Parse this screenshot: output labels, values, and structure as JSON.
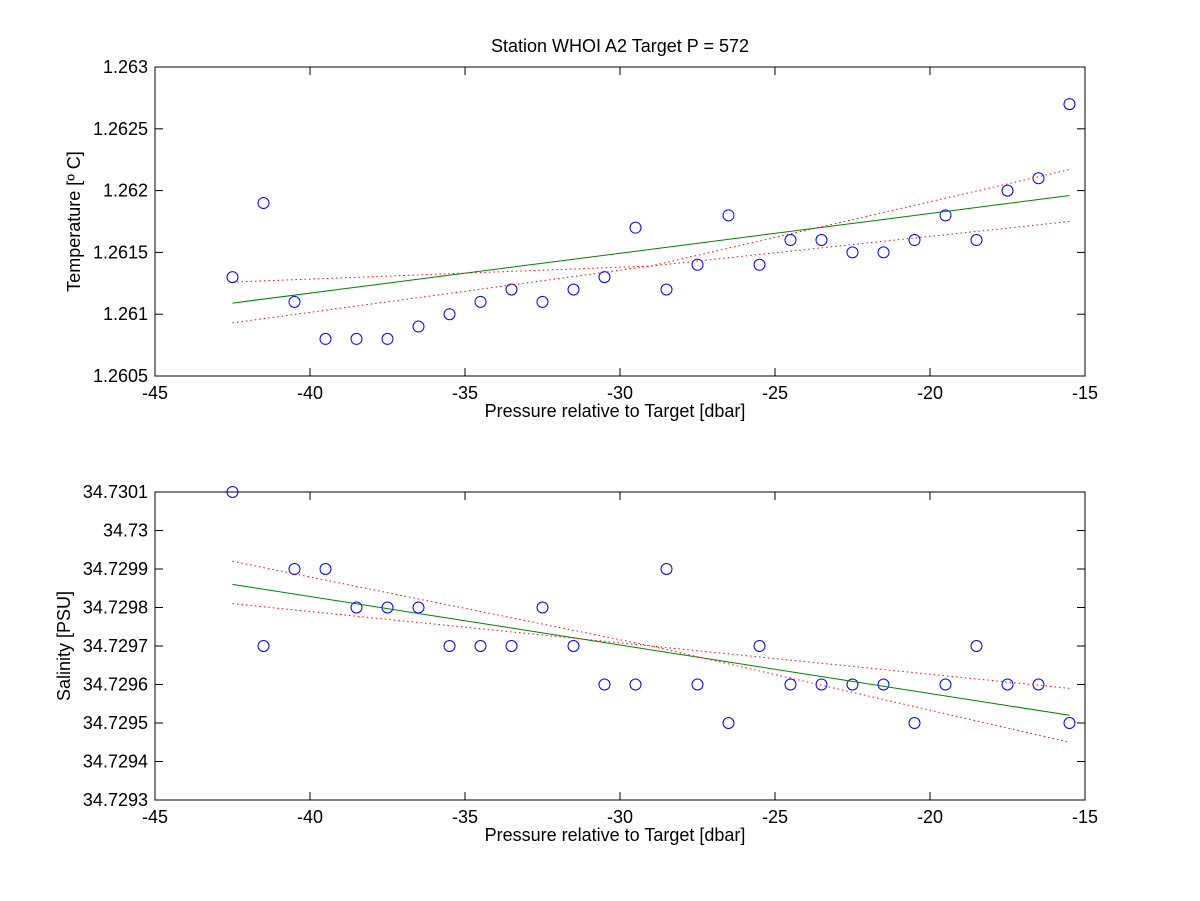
{
  "title": "Station  WHOI A2 Target P = 572",
  "chart_data": [
    {
      "type": "scatter",
      "title": "Station  WHOI A2 Target P = 572",
      "xlabel": "Pressure relative to Target [dbar]",
      "ylabel": "Temperature [º C]",
      "xlim": [
        -45,
        -15
      ],
      "ylim": [
        1.2605,
        1.263
      ],
      "xticks": [
        "-45",
        "-40",
        "-35",
        "-30",
        "-25",
        "-20",
        "-15"
      ],
      "yticks": [
        "1.2605",
        "1.261",
        "1.2615",
        "1.262",
        "1.2625",
        "1.263"
      ],
      "grid": false,
      "series": [
        {
          "kind": "points",
          "marker": "circle",
          "color": "#0000ff",
          "x": [
            -42.5,
            -41.5,
            -40.5,
            -39.5,
            -38.5,
            -37.5,
            -36.5,
            -35.5,
            -34.5,
            -33.5,
            -32.5,
            -31.5,
            -30.5,
            -29.5,
            -28.5,
            -27.5,
            -26.5,
            -25.5,
            -24.5,
            -23.5,
            -22.5,
            -21.5,
            -20.5,
            -19.5,
            -18.5,
            -17.5,
            -16.5,
            -15.5
          ],
          "y": [
            1.2613,
            1.2619,
            1.2611,
            1.2608,
            1.2608,
            1.2608,
            1.2609,
            1.261,
            1.2611,
            1.2612,
            1.2611,
            1.2612,
            1.2613,
            1.2617,
            1.2612,
            1.2614,
            1.2618,
            1.2614,
            1.2616,
            1.2616,
            1.2615,
            1.2615,
            1.2616,
            1.2618,
            1.2616,
            1.262,
            1.2621,
            1.2627
          ]
        },
        {
          "kind": "fit",
          "color": "#008000",
          "x": [
            -42.5,
            -15.5
          ],
          "y": [
            1.26109,
            1.26196
          ]
        },
        {
          "kind": "ci-upper",
          "color": "#ff0000",
          "x": [
            -42.5,
            -29.0,
            -15.5
          ],
          "y": [
            1.26126,
            1.26139,
            1.26217
          ]
        },
        {
          "kind": "ci-lower",
          "color": "#ff0000",
          "x": [
            -42.5,
            -29.0,
            -15.5
          ],
          "y": [
            1.26093,
            1.26139,
            1.26175
          ]
        }
      ]
    },
    {
      "type": "scatter",
      "title": "",
      "xlabel": "Pressure relative to Target [dbar]",
      "ylabel": "Salinity [PSU]",
      "xlim": [
        -45,
        -15
      ],
      "ylim": [
        34.7293,
        34.7301
      ],
      "xticks": [
        "-45",
        "-40",
        "-35",
        "-30",
        "-25",
        "-20",
        "-15"
      ],
      "yticks": [
        "34.7293",
        "34.7294",
        "34.7295",
        "34.7296",
        "34.7297",
        "34.7298",
        "34.7299",
        "34.73",
        "34.7301"
      ],
      "grid": false,
      "series": [
        {
          "kind": "points",
          "marker": "circle",
          "color": "#0000ff",
          "x": [
            -42.5,
            -41.5,
            -40.5,
            -39.5,
            -38.5,
            -37.5,
            -36.5,
            -35.5,
            -34.5,
            -33.5,
            -32.5,
            -31.5,
            -30.5,
            -29.5,
            -28.5,
            -27.5,
            -26.5,
            -25.5,
            -24.5,
            -23.5,
            -22.5,
            -21.5,
            -20.5,
            -19.5,
            -18.5,
            -17.5,
            -16.5,
            -15.5
          ],
          "y": [
            34.7301,
            34.7297,
            34.7299,
            34.7299,
            34.7298,
            34.7298,
            34.7298,
            34.7297,
            34.7297,
            34.7297,
            34.7298,
            34.7297,
            34.7296,
            34.7296,
            34.7299,
            34.7296,
            34.7295,
            34.7297,
            34.7296,
            34.7296,
            34.7296,
            34.7296,
            34.7295,
            34.7296,
            34.7297,
            34.7296,
            34.7296,
            34.7295
          ]
        },
        {
          "kind": "fit",
          "color": "#008000",
          "x": [
            -42.5,
            -15.5
          ],
          "y": [
            34.72986,
            34.72952
          ]
        },
        {
          "kind": "ci-upper",
          "color": "#ff0000",
          "x": [
            -42.5,
            -29.0,
            -15.5
          ],
          "y": [
            34.72992,
            34.7297,
            34.72959
          ]
        },
        {
          "kind": "ci-lower",
          "color": "#ff0000",
          "x": [
            -42.5,
            -29.0,
            -15.5
          ],
          "y": [
            34.72981,
            34.7297,
            34.72945
          ]
        }
      ]
    }
  ]
}
